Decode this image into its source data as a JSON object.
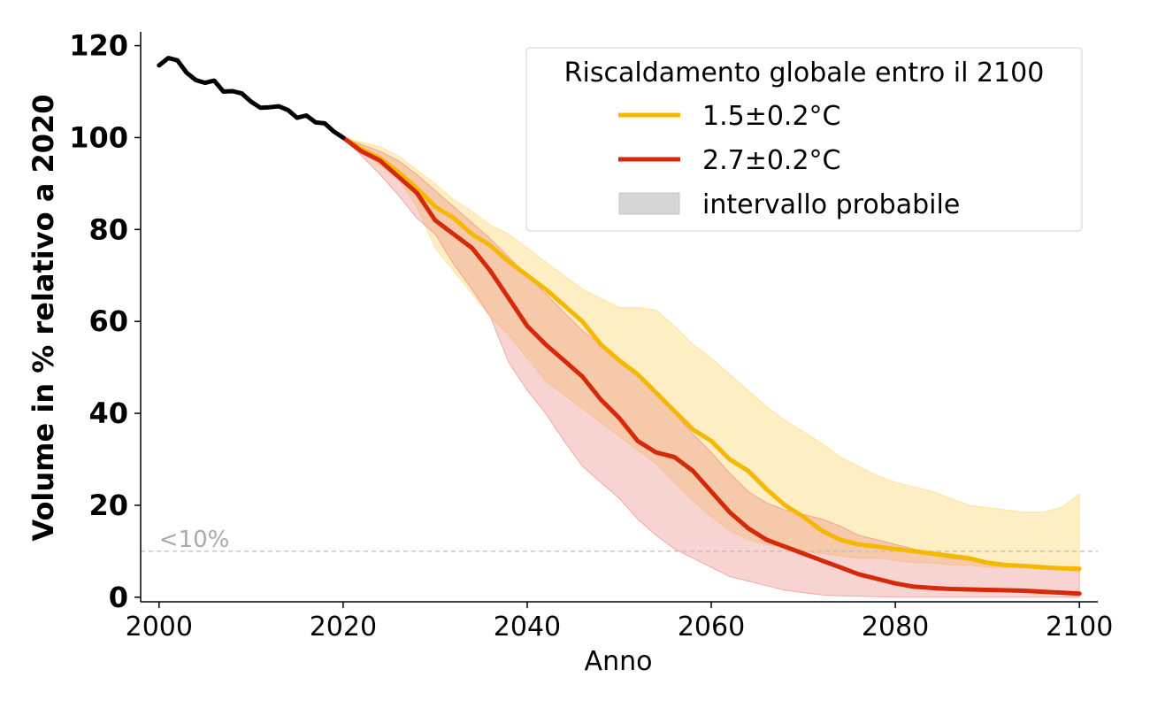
{
  "chart_data": {
    "type": "line",
    "title": "",
    "xlabel": "Anno",
    "ylabel": "Volume in % relativo a 2020",
    "xlim": [
      1998,
      2102
    ],
    "ylim": [
      -1,
      123
    ],
    "xticks": [
      2000,
      2020,
      2040,
      2060,
      2080,
      2100
    ],
    "yticks": [
      0,
      20,
      40,
      60,
      80,
      100,
      120
    ],
    "grid": false,
    "legend": {
      "placement": "top-right",
      "title": "Riscaldamento globale entro il 2100",
      "entries": [
        "1.5±0.2°C",
        "2.7±0.2°C",
        "intervallo probabile"
      ]
    },
    "reference_line": {
      "y": 10,
      "label": "<10%",
      "color": "#bbbbbb"
    },
    "colors": {
      "historical": "#000000",
      "s15": "#f5b800",
      "s27": "#d42a0a",
      "band15": "#fdd97a",
      "band27": "#e8837a",
      "legend_patch": "#d6d6d6"
    },
    "series": [
      {
        "name": "",
        "key": "historical",
        "x": [
          2000,
          2001,
          2002,
          2003,
          2004,
          2005,
          2006,
          2007,
          2008,
          2009,
          2010,
          2011,
          2012,
          2013,
          2014,
          2015,
          2016,
          2017,
          2018,
          2019,
          2020
        ],
        "values": [
          115.7,
          117.3,
          116.8,
          114.1,
          112.5,
          111.9,
          112.4,
          110.0,
          110.1,
          109.6,
          107.8,
          106.5,
          106.6,
          106.8,
          106.0,
          104.3,
          104.8,
          103.3,
          103.1,
          101.3,
          100.0
        ]
      },
      {
        "name": "1.5±0.2°C",
        "key": "s15",
        "x": [
          2020,
          2022,
          2024,
          2026,
          2028,
          2030,
          2032,
          2034,
          2036,
          2038,
          2040,
          2042,
          2044,
          2046,
          2048,
          2050,
          2052,
          2054,
          2056,
          2058,
          2060,
          2062,
          2064,
          2066,
          2068,
          2070,
          2072,
          2074,
          2076,
          2078,
          2080,
          2082,
          2084,
          2086,
          2088,
          2090,
          2092,
          2094,
          2096,
          2098,
          2100
        ],
        "values": [
          100,
          97.5,
          95.5,
          92.5,
          89,
          85,
          82.5,
          79,
          76.5,
          73,
          70,
          67,
          63.5,
          60,
          55,
          51.5,
          48.5,
          44.5,
          40.5,
          36.5,
          34,
          30,
          27.5,
          23.5,
          20,
          17.5,
          14.5,
          12.5,
          11.5,
          11,
          10.5,
          10,
          9.5,
          9,
          8.5,
          7.5,
          7,
          6.8,
          6.5,
          6.3,
          6.2
        ]
      },
      {
        "name": "2.7±0.2°C",
        "key": "s27",
        "x": [
          2020,
          2022,
          2024,
          2026,
          2028,
          2030,
          2032,
          2034,
          2036,
          2038,
          2040,
          2042,
          2044,
          2046,
          2048,
          2050,
          2052,
          2054,
          2056,
          2058,
          2060,
          2062,
          2064,
          2066,
          2068,
          2070,
          2072,
          2074,
          2076,
          2078,
          2080,
          2082,
          2084,
          2086,
          2088,
          2090,
          2092,
          2094,
          2096,
          2098,
          2100
        ],
        "values": [
          100,
          97,
          95,
          91.5,
          88,
          82,
          79,
          76,
          71,
          65,
          59,
          55,
          51.5,
          48,
          43,
          39,
          34,
          31.5,
          30.5,
          27.5,
          23,
          18.5,
          15,
          12.5,
          11,
          9.5,
          8,
          6.5,
          5,
          4,
          3,
          2.3,
          2,
          1.8,
          1.7,
          1.6,
          1.5,
          1.4,
          1.2,
          1.0,
          0.8
        ]
      }
    ],
    "bands": [
      {
        "key": "band15",
        "x": [
          2020,
          2022,
          2024,
          2026,
          2028,
          2030,
          2032,
          2034,
          2036,
          2038,
          2040,
          2042,
          2044,
          2046,
          2048,
          2050,
          2052,
          2054,
          2056,
          2058,
          2060,
          2062,
          2064,
          2066,
          2068,
          2070,
          2072,
          2074,
          2076,
          2078,
          2080,
          2082,
          2084,
          2086,
          2088,
          2090,
          2092,
          2094,
          2096,
          2098,
          2100
        ],
        "upper": [
          100,
          99,
          98,
          96,
          93,
          90,
          86.5,
          84,
          81,
          79,
          76,
          73,
          70,
          67,
          65,
          63,
          63,
          62.5,
          59,
          55,
          52,
          48.5,
          45,
          41.5,
          38.5,
          36,
          33.5,
          30.5,
          28.5,
          26.5,
          25,
          24,
          23,
          21.5,
          20,
          19.5,
          19,
          18.5,
          18.5,
          19.5,
          22.5
        ],
        "lower": [
          100,
          97,
          94,
          91,
          85,
          76,
          71,
          66,
          61,
          57,
          52,
          47,
          44,
          41,
          38,
          35,
          32,
          29,
          25,
          21,
          17.5,
          14.5,
          12.5,
          11.5,
          10.5,
          10,
          9.5,
          9,
          8.5,
          8.5,
          8,
          7.5,
          7.5,
          7,
          7,
          6.5,
          6.5,
          6.5,
          6.5,
          6,
          5.5
        ]
      },
      {
        "key": "band27",
        "x": [
          2020,
          2022,
          2024,
          2026,
          2028,
          2030,
          2032,
          2034,
          2036,
          2038,
          2040,
          2042,
          2044,
          2046,
          2048,
          2050,
          2052,
          2054,
          2056,
          2058,
          2060,
          2062,
          2064,
          2066,
          2068,
          2070,
          2072,
          2074,
          2076,
          2078,
          2080,
          2082,
          2084,
          2086,
          2088,
          2090,
          2092,
          2094,
          2096,
          2098,
          2100
        ],
        "upper": [
          100,
          98.5,
          97,
          95,
          92,
          88.5,
          85,
          81.5,
          78,
          74,
          70,
          66,
          62,
          58,
          55,
          51,
          48,
          44,
          40,
          35.5,
          31.5,
          27,
          23,
          20.5,
          19,
          18,
          17,
          15.5,
          13.5,
          12.5,
          11.5,
          10.5,
          9.5,
          8.5,
          8,
          7.5,
          7.2,
          7,
          6.8,
          6.6,
          6.5
        ],
        "lower": [
          100,
          96,
          92,
          87.5,
          82.5,
          79,
          72.5,
          67,
          61,
          51,
          45,
          40,
          34,
          28.5,
          25,
          21.5,
          17,
          13.5,
          10.5,
          8.5,
          6.5,
          4.5,
          3.5,
          2.5,
          1.5,
          1,
          0.5,
          0.3,
          0.2,
          0.1,
          0,
          0,
          0,
          0,
          0,
          0,
          0,
          0,
          0,
          0,
          0
        ]
      }
    ]
  }
}
